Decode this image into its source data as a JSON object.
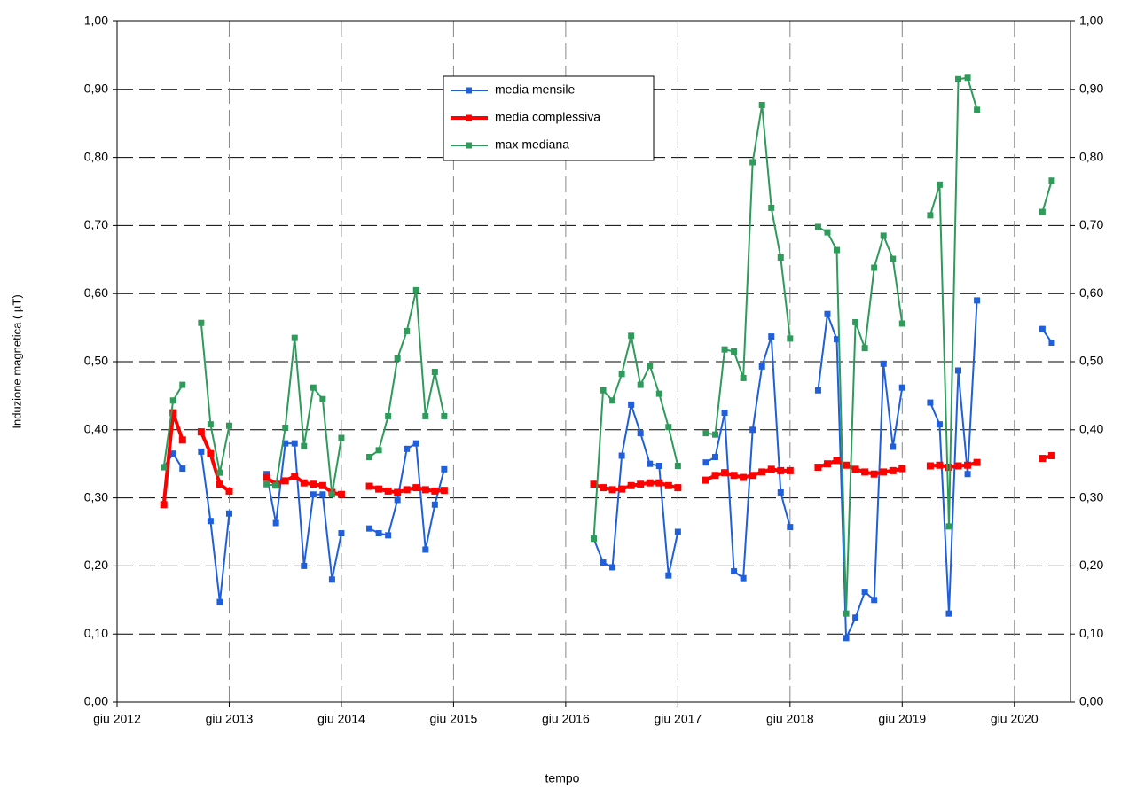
{
  "chart_data": {
    "type": "line",
    "y_label": "Induzione magnetica ( µT)",
    "x_label": "tempo",
    "grid": true,
    "legend": "top",
    "xlim": [
      "2012-06",
      "2020-12"
    ],
    "xticks": [
      {
        "value": "2012-06",
        "label": "giu 2012"
      },
      {
        "value": "2013-06",
        "label": "giu 2013"
      },
      {
        "value": "2014-06",
        "label": "giu 2014"
      },
      {
        "value": "2015-06",
        "label": "giu 2015"
      },
      {
        "value": "2016-06",
        "label": "giu 2016"
      },
      {
        "value": "2017-06",
        "label": "giu 2017"
      },
      {
        "value": "2018-06",
        "label": "giu 2018"
      },
      {
        "value": "2019-06",
        "label": "giu 2019"
      },
      {
        "value": "2020-06",
        "label": "giu 2020"
      }
    ],
    "ylim": [
      0,
      1
    ],
    "yticks": [
      {
        "value": 0,
        "label": "0,00"
      },
      {
        "value": 0.1,
        "label": "0,10"
      },
      {
        "value": 0.2,
        "label": "0,20"
      },
      {
        "value": 0.3,
        "label": "0,30"
      },
      {
        "value": 0.4,
        "label": "0,40"
      },
      {
        "value": 0.5,
        "label": "0,50"
      },
      {
        "value": 0.6,
        "label": "0,60"
      },
      {
        "value": 0.7,
        "label": "0,70"
      },
      {
        "value": 0.8,
        "label": "0,80"
      },
      {
        "value": 0.9,
        "label": "0,90"
      },
      {
        "value": 1,
        "label": "1,00"
      }
    ],
    "y2lim": [
      0,
      1
    ],
    "y2ticks": [
      {
        "value": 0,
        "label": "0,00"
      },
      {
        "value": 0.1,
        "label": "0,10"
      },
      {
        "value": 0.2,
        "label": "0,20"
      },
      {
        "value": 0.3,
        "label": "0,30"
      },
      {
        "value": 0.4,
        "label": "0,40"
      },
      {
        "value": 0.5,
        "label": "0,50"
      },
      {
        "value": 0.6,
        "label": "0,60"
      },
      {
        "value": 0.7,
        "label": "0,70"
      },
      {
        "value": 0.8,
        "label": "0,80"
      },
      {
        "value": 0.9,
        "label": "0,90"
      },
      {
        "value": 1,
        "label": "1,00"
      }
    ],
    "x": [
      "2012-11",
      "2012-12",
      "2013-01",
      "2013-02",
      "2013-03",
      "2013-04",
      "2013-05",
      "2013-06",
      "2013-07",
      "2013-10",
      "2013-11",
      "2013-12",
      "2014-01",
      "2014-02",
      "2014-03",
      "2014-04",
      "2014-05",
      "2014-06",
      "2014-07",
      "2014-09",
      "2014-10",
      "2014-11",
      "2014-12",
      "2015-01",
      "2015-02",
      "2015-03",
      "2015-04",
      "2015-05",
      "2015-06",
      "2016-09",
      "2016-10",
      "2016-11",
      "2016-12",
      "2017-01",
      "2017-02",
      "2017-03",
      "2017-04",
      "2017-05",
      "2017-06",
      "2017-07",
      "2017-09",
      "2017-10",
      "2017-11",
      "2017-12",
      "2018-01",
      "2018-02",
      "2018-03",
      "2018-04",
      "2018-05",
      "2018-06",
      "2018-07",
      "2018-09",
      "2018-10",
      "2018-11",
      "2018-12",
      "2019-01",
      "2019-02",
      "2019-03",
      "2019-04",
      "2019-05",
      "2019-06",
      "2019-07",
      "2019-09",
      "2019-10",
      "2019-11",
      "2019-12",
      "2020-01",
      "2020-02",
      "2020-03",
      "2020-09",
      "2020-10"
    ],
    "series": [
      {
        "name": "media mensile",
        "color": "#1f5fdc",
        "width": 2,
        "values": [
          0.345,
          0.365,
          0.343,
          null,
          0.368,
          0.266,
          0.147,
          0.277,
          null,
          0.335,
          0.263,
          0.38,
          0.38,
          0.2,
          0.305,
          0.305,
          0.18,
          0.248,
          null,
          0.255,
          0.248,
          0.245,
          0.297,
          0.372,
          0.38,
          0.224,
          0.29,
          0.342,
          null,
          0.24,
          0.205,
          0.198,
          0.362,
          0.437,
          0.395,
          0.35,
          0.347,
          0.186,
          0.25,
          null,
          0.352,
          0.36,
          0.425,
          0.192,
          0.182,
          0.4,
          0.493,
          0.537,
          0.308,
          0.257,
          null,
          0.458,
          0.57,
          0.533,
          0.094,
          0.124,
          0.162,
          0.15,
          0.497,
          0.375,
          0.462,
          null,
          0.44,
          0.408,
          0.13,
          0.487,
          0.335,
          0.59,
          null,
          0.548,
          0.528
        ]
      },
      {
        "name": "media complessiva",
        "color": "#ff0000",
        "width": 4,
        "values": [
          0.29,
          0.425,
          0.385,
          null,
          0.397,
          0.365,
          0.32,
          0.31,
          null,
          0.33,
          0.32,
          0.325,
          0.332,
          0.322,
          0.32,
          0.318,
          0.308,
          0.305,
          null,
          0.317,
          0.313,
          0.31,
          0.308,
          0.312,
          0.315,
          0.312,
          0.31,
          0.311,
          null,
          0.32,
          0.315,
          0.312,
          0.313,
          0.318,
          0.32,
          0.322,
          0.322,
          0.318,
          0.315,
          null,
          0.326,
          0.333,
          0.337,
          0.333,
          0.33,
          0.333,
          0.338,
          0.342,
          0.34,
          0.34,
          null,
          0.345,
          0.35,
          0.355,
          0.348,
          0.342,
          0.338,
          0.335,
          0.338,
          0.34,
          0.343,
          null,
          0.347,
          0.348,
          0.345,
          0.347,
          0.348,
          0.352,
          null,
          0.358,
          0.362
        ]
      },
      {
        "name": "max mediana",
        "color": "#2e9b5b",
        "width": 2,
        "values": [
          0.345,
          0.443,
          0.466,
          null,
          0.557,
          0.408,
          0.337,
          0.406,
          null,
          0.32,
          0.318,
          0.403,
          0.535,
          0.376,
          0.462,
          0.445,
          0.305,
          0.388,
          null,
          0.36,
          0.37,
          0.42,
          0.505,
          0.545,
          0.605,
          0.42,
          0.485,
          0.42,
          null,
          0.24,
          0.458,
          0.443,
          0.482,
          0.538,
          0.466,
          0.494,
          0.453,
          0.404,
          0.347,
          null,
          0.395,
          0.393,
          0.518,
          0.515,
          0.476,
          0.793,
          0.877,
          0.726,
          0.653,
          0.534,
          null,
          0.698,
          0.69,
          0.664,
          0.13,
          0.558,
          0.52,
          0.638,
          0.685,
          0.651,
          0.556,
          null,
          0.715,
          0.76,
          0.258,
          0.915,
          0.917,
          0.87,
          null,
          0.72,
          0.766
        ]
      }
    ]
  }
}
